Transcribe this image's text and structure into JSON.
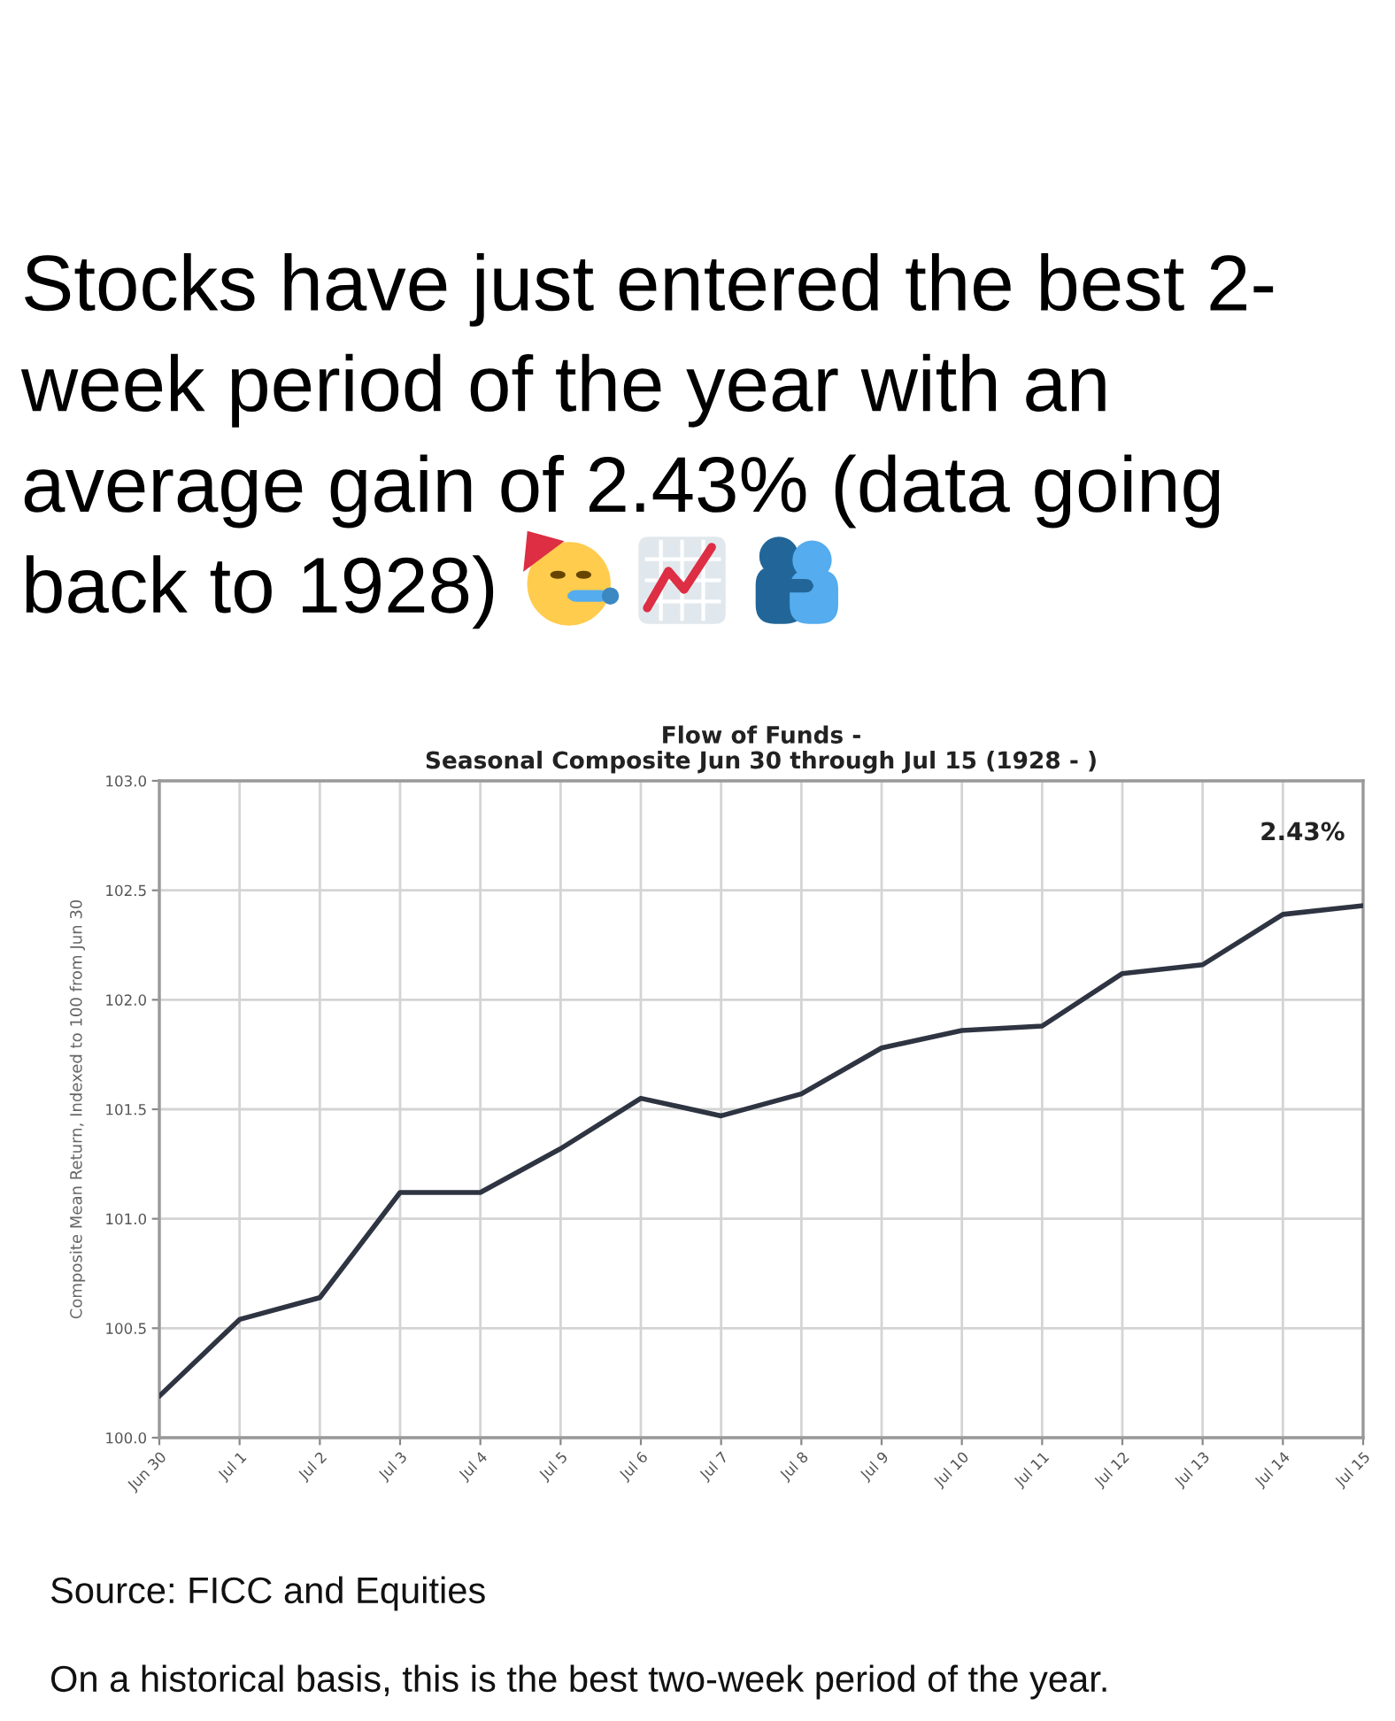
{
  "chart_data": {
    "type": "line",
    "title": "Stocks have just entered the best 2-week period of the year with an average gain of 2.43% (data going back to 1928)",
    "subtitle": "Flow of Funds -\nSeasonal Composite Jun 30 through Jul 15 (1928 - )",
    "ylabel": "Composite Mean Return, Indexed to 100 from Jun 30",
    "categories": [
      "Jun 30",
      "Jul 1",
      "Jul 2",
      "Jul 3",
      "Jul 4",
      "Jul 5",
      "Jul 6",
      "Jul 7",
      "Jul 8",
      "Jul 9",
      "Jul 10",
      "Jul 11",
      "Jul 12",
      "Jul 13",
      "Jul 14",
      "Jul 15"
    ],
    "values": [
      100.19,
      100.54,
      100.64,
      101.12,
      101.12,
      101.32,
      101.55,
      101.47,
      101.57,
      101.78,
      101.86,
      101.88,
      102.12,
      102.16,
      102.39,
      102.43
    ],
    "color": "#2e3441",
    "ylim": [
      100,
      103
    ],
    "yticks": [
      {
        "value": 100,
        "label": "100.0"
      },
      {
        "value": 100.5,
        "label": "100.5"
      },
      {
        "value": 101,
        "label": "101.0"
      },
      {
        "value": 101.5,
        "label": "101.5"
      },
      {
        "value": 102,
        "label": "102.0"
      },
      {
        "value": 102.5,
        "label": "102.5"
      },
      {
        "value": 103,
        "label": "103.0"
      }
    ],
    "grid": true,
    "line_style": "solid",
    "annotations": [
      "2.43%",
      "Source: FICC and Equities",
      "On a historical basis, this is the best two-week period of the year."
    ]
  }
}
